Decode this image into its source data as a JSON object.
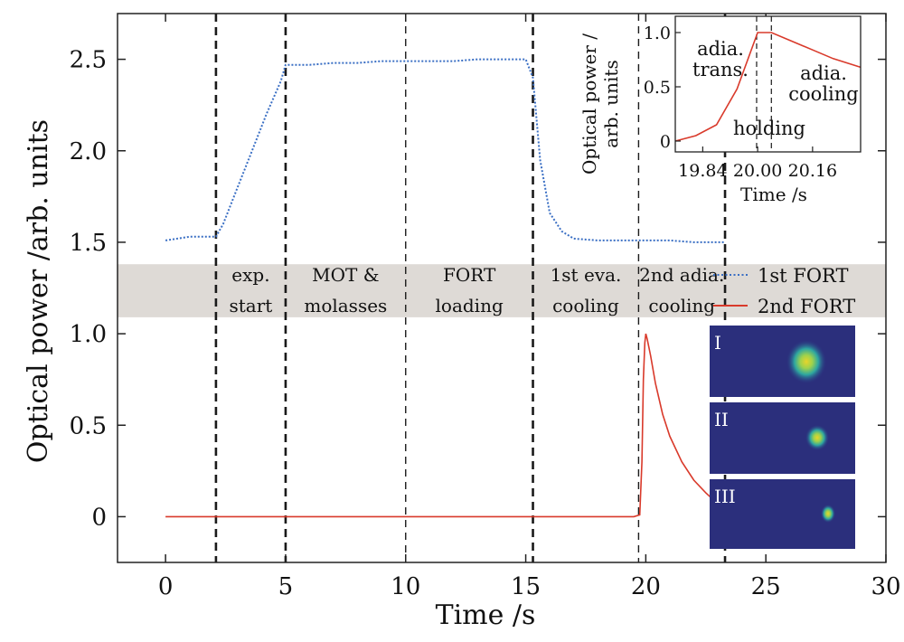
{
  "chart_data": [
    {
      "type": "line",
      "title": "",
      "xlabel": "Time /s",
      "ylabel": "Optical power /arb. units",
      "xlim": [
        -2,
        30
      ],
      "ylim": [
        -0.25,
        2.75
      ],
      "xticks": [
        0,
        5,
        10,
        15,
        20,
        25,
        30
      ],
      "xtick_labels": [
        "0",
        "5",
        "10",
        "15",
        "20",
        "25",
        "30"
      ],
      "yticks": [
        0,
        0.5,
        1.0,
        1.5,
        2.0,
        2.5
      ],
      "ytick_labels": [
        "0",
        "0.5",
        "1.0",
        "1.5",
        "2.0",
        "2.5"
      ],
      "series": [
        {
          "name": "1st FORT",
          "color": "#3a6fc4",
          "style": "dotted",
          "x": [
            0,
            1.0,
            2.1,
            2.4,
            3.0,
            3.6,
            4.2,
            4.8,
            5.0,
            6.0,
            7.0,
            8.0,
            9.0,
            10.0,
            11.0,
            12.0,
            13.0,
            14.0,
            15.0,
            15.3,
            15.6,
            16.0,
            16.5,
            17.0,
            18.0,
            19.0,
            20.0,
            21.0,
            22.0,
            23.3
          ],
          "y": [
            1.51,
            1.53,
            1.53,
            1.6,
            1.8,
            2.0,
            2.2,
            2.38,
            2.47,
            2.47,
            2.48,
            2.48,
            2.49,
            2.49,
            2.49,
            2.49,
            2.5,
            2.5,
            2.5,
            2.4,
            1.95,
            1.66,
            1.56,
            1.52,
            1.51,
            1.51,
            1.51,
            1.51,
            1.5,
            1.5
          ]
        },
        {
          "name": "2nd FORT",
          "color": "#d93a2b",
          "style": "solid",
          "x": [
            0,
            5.0,
            10.0,
            15.0,
            19.5,
            19.75,
            19.84,
            19.9,
            19.96,
            20.0,
            20.06,
            20.2,
            20.4,
            20.7,
            21.0,
            21.5,
            22.0,
            22.5,
            23.0,
            23.3
          ],
          "y": [
            0,
            0,
            0,
            0,
            0,
            0.01,
            0.3,
            0.75,
            0.95,
            1.0,
            0.97,
            0.88,
            0.73,
            0.56,
            0.44,
            0.3,
            0.2,
            0.13,
            0.07,
            0.02
          ]
        }
      ],
      "vertical_markers": [
        {
          "x": 2.1,
          "style": "thick-dashed"
        },
        {
          "x": 5.0,
          "style": "thick-dashed"
        },
        {
          "x": 10.0,
          "style": "thin-dashed"
        },
        {
          "x": 15.3,
          "style": "thick-dashed"
        },
        {
          "x": 19.7,
          "style": "thin-dashed"
        },
        {
          "x": 23.3,
          "style": "thick-dashed"
        }
      ],
      "band": {
        "ymin": 1.09,
        "ymax": 1.38
      },
      "stages": [
        {
          "x": 3.55,
          "line1": "exp.",
          "line2": "start"
        },
        {
          "x": 7.5,
          "line1": "MOT &",
          "line2": "molasses"
        },
        {
          "x": 12.65,
          "line1": "FORT",
          "line2": "loading"
        },
        {
          "x": 17.5,
          "line1": "1st eva.",
          "line2": "cooling"
        },
        {
          "x": 21.5,
          "line1": "2nd adia.",
          "line2": "cooling"
        }
      ],
      "legend": {
        "position": "top-right",
        "entries": [
          "1st FORT",
          "2nd FORT"
        ]
      },
      "grid": false
    },
    {
      "type": "line",
      "title": "",
      "xlabel": "Time /s",
      "ylabel_line1": "Optical power /",
      "ylabel_line2": "arb. units",
      "xlim": [
        19.76,
        20.3
      ],
      "ylim": [
        -0.1,
        1.15
      ],
      "xticks": [
        19.84,
        20.0,
        20.16
      ],
      "xtick_labels": [
        "19.84",
        "20.00",
        "20.16"
      ],
      "yticks": [
        0,
        0.5,
        1.0
      ],
      "ytick_labels": [
        "0",
        "0.5",
        "1.0"
      ],
      "series": [
        {
          "name": "2nd FORT",
          "color": "#d93a2b",
          "x": [
            19.76,
            19.82,
            19.88,
            19.94,
            20.0,
            20.04,
            20.1,
            20.16,
            20.22,
            20.3
          ],
          "y": [
            0.0,
            0.05,
            0.15,
            0.48,
            1.0,
            1.0,
            0.92,
            0.84,
            0.76,
            0.68
          ]
        }
      ],
      "vertical_markers": [
        19.997,
        20.04
      ],
      "annotations": [
        {
          "text_lines": [
            "adia.",
            "trans."
          ]
        },
        {
          "text_lines": [
            "holding"
          ]
        },
        {
          "text_lines": [
            "adia.",
            "cooling"
          ]
        }
      ]
    }
  ],
  "insets": [
    {
      "label": "I",
      "cloud": "large"
    },
    {
      "label": "II",
      "cloud": "medium"
    },
    {
      "label": "III",
      "cloud": "small"
    }
  ]
}
